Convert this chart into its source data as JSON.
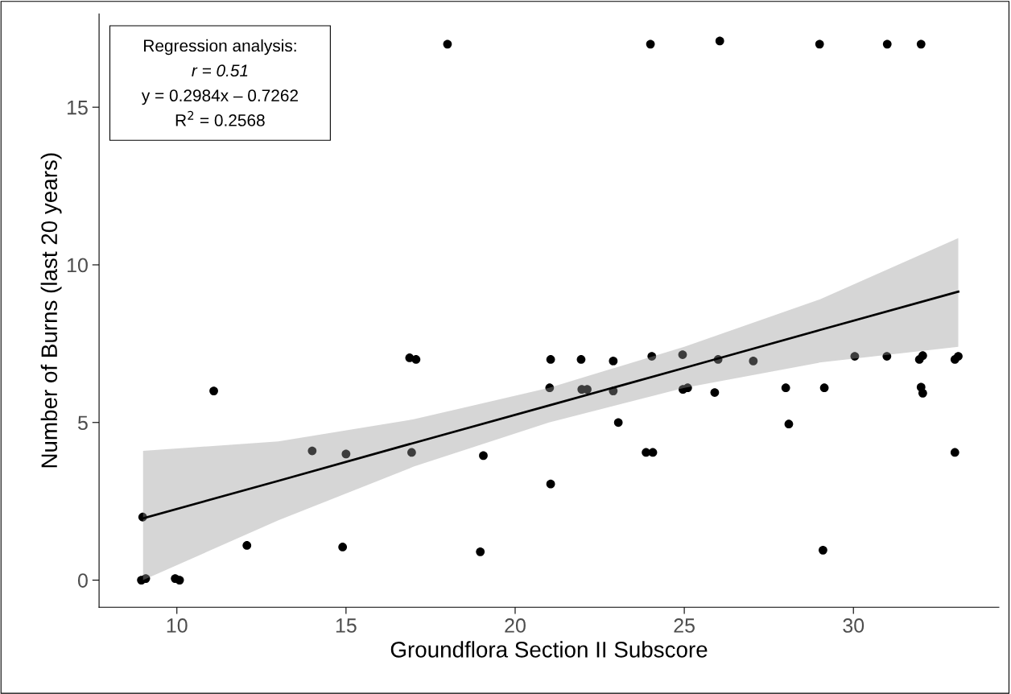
{
  "chart_data": {
    "type": "scatter",
    "xlabel": "Groundflora Section II Subscore",
    "ylabel": "Number of Burns (last 20 years)",
    "annotations": [
      "Regression analysis:",
      "r = 0.51",
      "y = 0.2984x – 0.7262",
      "R$^{2}$ = 0.2568"
    ],
    "xlim": [
      7.7,
      34.3
    ],
    "ylim": [
      -0.86,
      17.96
    ],
    "xticks": [
      10,
      15,
      20,
      25,
      30
    ],
    "yticks": [
      0,
      5,
      10,
      15
    ],
    "grid": false,
    "series": [
      {
        "marker": "circle",
        "color": "#000000",
        "x": [
          8.95,
          9.08,
          8.99,
          9.95,
          10.08,
          11.09,
          12.07,
          14.0,
          15.0,
          14.9,
          16.88,
          17.07,
          16.94,
          19.06,
          18.97,
          21.05,
          21.02,
          21.05,
          21.95,
          21.97,
          22.13,
          22.9,
          22.9,
          23.05,
          23.87,
          24.07,
          24.04,
          24.95,
          24.96,
          25.1,
          25.9,
          26.0,
          27.04,
          28.0,
          28.09,
          29.14,
          29.1,
          30.04,
          30.99,
          31.95,
          32.05,
          32.0,
          32.05,
          33.0,
          33.1,
          33.0,
          32.0,
          31.0,
          29.0,
          26.05,
          24.0,
          18.0
        ],
        "values": [
          0,
          0.05,
          2.0,
          0.05,
          0,
          6.0,
          1.1,
          4.1,
          4.0,
          1.05,
          7.05,
          7.0,
          4.05,
          3.95,
          0.9,
          7.0,
          6.1,
          3.05,
          7.0,
          6.05,
          6.05,
          6.95,
          6.0,
          5.0,
          4.05,
          4.05,
          7.1,
          7.15,
          6.05,
          6.1,
          5.95,
          7.0,
          6.95,
          6.1,
          4.95,
          6.1,
          0.95,
          7.1,
          7.1,
          7.0,
          7.12,
          6.12,
          5.93,
          7.0,
          7.1,
          4.05,
          17.0,
          17.0,
          17.0,
          17.1,
          17.0,
          17.0
        ]
      },
      {
        "type": "line",
        "color": "#000000",
        "x": [
          9,
          13,
          17,
          21,
          25,
          29,
          33.1
        ],
        "values": [
          1.96,
          3.15,
          4.35,
          5.54,
          6.73,
          7.93,
          9.15
        ],
        "lower": [
          0.0,
          1.9,
          3.6,
          5.0,
          6.1,
          6.9,
          7.4
        ],
        "upper": [
          4.1,
          4.4,
          5.1,
          6.1,
          7.4,
          8.9,
          10.85
        ]
      }
    ]
  }
}
